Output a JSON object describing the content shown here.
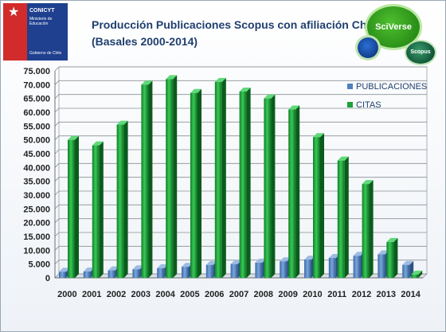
{
  "logo": {
    "main": "CONICYT",
    "sub": "Ministerio de Educación",
    "gov": "Gobierno de Chile"
  },
  "header": {
    "title_line1": "Producción Publicaciones Scopus con afiliación Chile",
    "title_line2": "(Basales 2000-2014)"
  },
  "badges": {
    "sciverse": "SciVerse",
    "scopus": "Scopus"
  },
  "colors": {
    "publicaciones": "#4f81bd",
    "citas": "#1aa33a"
  },
  "chart_data": {
    "type": "bar",
    "categories": [
      "2000",
      "2001",
      "2002",
      "2003",
      "2004",
      "2005",
      "2006",
      "2007",
      "2008",
      "2009",
      "2010",
      "2011",
      "2012",
      "2013",
      "2014"
    ],
    "series": [
      {
        "name": "PUBLICACIONES",
        "values": [
          2200,
          2300,
          2700,
          3100,
          3500,
          4000,
          4700,
          5000,
          5500,
          6000,
          6600,
          7200,
          8000,
          8500,
          4700
        ]
      },
      {
        "name": "CITAS",
        "values": [
          50000,
          48000,
          55500,
          70000,
          72000,
          67000,
          71000,
          67500,
          65000,
          61000,
          51000,
          42500,
          34000,
          13000,
          1200
        ]
      }
    ],
    "ylim": [
      0,
      75000
    ],
    "yticks": [
      "0",
      "5.000",
      "10.000",
      "15.000",
      "20.000",
      "25.000",
      "30.000",
      "35.000",
      "40.000",
      "45.000",
      "50.000",
      "55.000",
      "60.000",
      "65.000",
      "70.000",
      "75.000"
    ],
    "legend": "right"
  }
}
